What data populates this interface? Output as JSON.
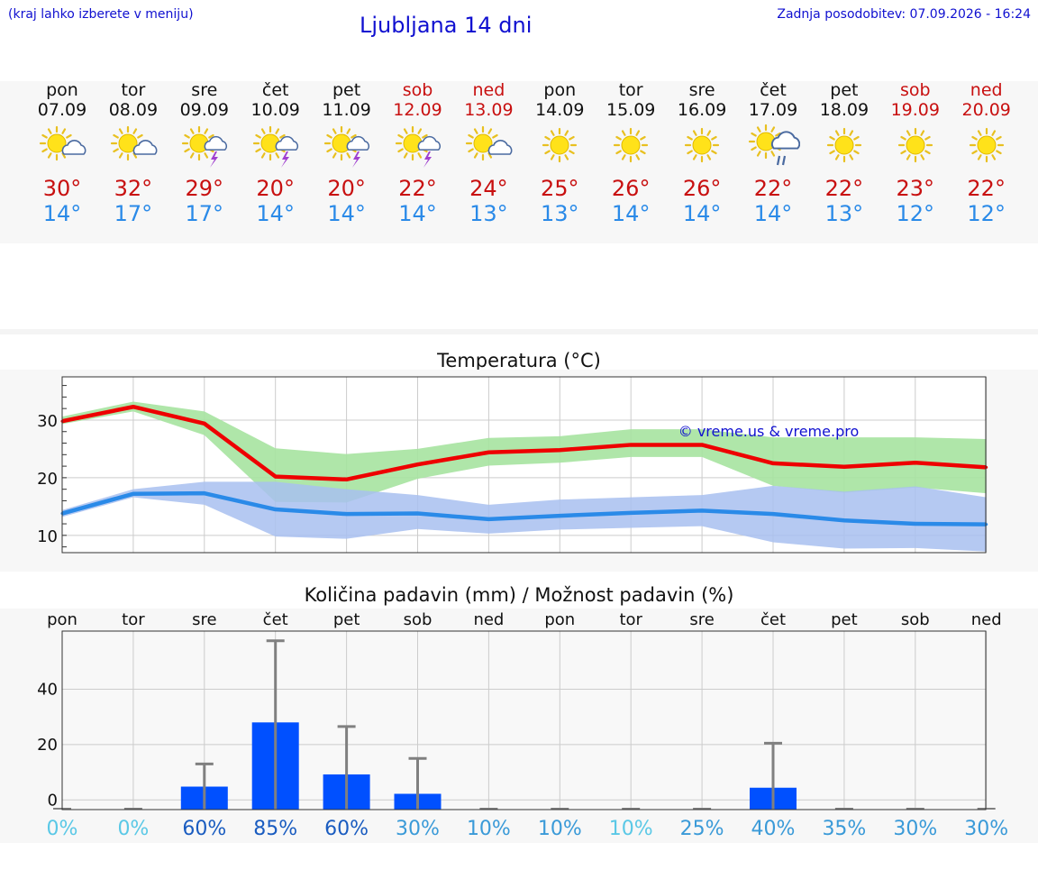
{
  "header": {
    "left_note": "(kraj lahko izberete v meniju)",
    "title": "Ljubljana 14 dni",
    "updated": "Zadnja posodobitev: 07.09.2026 - 16:24"
  },
  "days": [
    {
      "name": "pon",
      "date": "07.09",
      "hi": "30°",
      "lo": "14°",
      "weekend": false,
      "icon": "sun-cloud-icon"
    },
    {
      "name": "tor",
      "date": "08.09",
      "hi": "32°",
      "lo": "17°",
      "weekend": false,
      "icon": "sun-cloud-icon"
    },
    {
      "name": "sre",
      "date": "09.09",
      "hi": "29°",
      "lo": "17°",
      "weekend": false,
      "icon": "sun-cloud-thunder-icon"
    },
    {
      "name": "čet",
      "date": "10.09",
      "hi": "20°",
      "lo": "14°",
      "weekend": false,
      "icon": "sun-cloud-thunder-icon"
    },
    {
      "name": "pet",
      "date": "11.09",
      "hi": "20°",
      "lo": "14°",
      "weekend": false,
      "icon": "sun-cloud-thunder-icon"
    },
    {
      "name": "sob",
      "date": "12.09",
      "hi": "22°",
      "lo": "14°",
      "weekend": true,
      "icon": "sun-cloud-thunder-icon"
    },
    {
      "name": "ned",
      "date": "13.09",
      "hi": "24°",
      "lo": "13°",
      "weekend": true,
      "icon": "sun-cloud-icon"
    },
    {
      "name": "pon",
      "date": "14.09",
      "hi": "25°",
      "lo": "13°",
      "weekend": false,
      "icon": "sun-icon"
    },
    {
      "name": "tor",
      "date": "15.09",
      "hi": "26°",
      "lo": "14°",
      "weekend": false,
      "icon": "sun-icon"
    },
    {
      "name": "sre",
      "date": "16.09",
      "hi": "26°",
      "lo": "14°",
      "weekend": false,
      "icon": "sun-icon"
    },
    {
      "name": "čet",
      "date": "17.09",
      "hi": "22°",
      "lo": "14°",
      "weekend": false,
      "icon": "sun-cloud-rain-icon"
    },
    {
      "name": "pet",
      "date": "18.09",
      "hi": "22°",
      "lo": "13°",
      "weekend": false,
      "icon": "sun-icon"
    },
    {
      "name": "sob",
      "date": "19.09",
      "hi": "23°",
      "lo": "12°",
      "weekend": true,
      "icon": "sun-icon"
    },
    {
      "name": "ned",
      "date": "20.09",
      "hi": "22°",
      "lo": "12°",
      "weekend": true,
      "icon": "sun-icon"
    }
  ],
  "colors": {
    "max_line": "#ee0000",
    "max_band": "#a6e3a0",
    "min_line": "#2a8ae8",
    "min_band": "#a8c0f0",
    "bars": "#0050ff",
    "whisker": "#808080",
    "watermark": "#1010d0",
    "prob_levels": [
      "#5ac8e6",
      "#3a9ad8",
      "#1a5cc0"
    ]
  },
  "chart_data": [
    {
      "type": "line",
      "title": "Temperatura (°C)",
      "xlabel": "",
      "ylabel": "",
      "x": [
        "07.09",
        "08.09",
        "09.09",
        "10.09",
        "11.09",
        "12.09",
        "13.09",
        "14.09",
        "15.09",
        "16.09",
        "17.09",
        "18.09",
        "19.09",
        "20.09"
      ],
      "ylim": [
        7,
        37.5
      ],
      "yticks": [
        10,
        20,
        30
      ],
      "grid": true,
      "watermark": "© vreme.us & vreme.pro",
      "series": [
        {
          "values": [
            29.8,
            32.3,
            29.4,
            20.2,
            19.7,
            22.3,
            24.4,
            24.8,
            25.7,
            25.7,
            22.5,
            21.9,
            22.6,
            21.8
          ],
          "band_low": [
            29.3,
            31.5,
            27.4,
            15.8,
            15.7,
            19.8,
            22.1,
            22.6,
            23.6,
            23.6,
            18.6,
            17.4,
            18.3,
            17.3
          ],
          "band_high": [
            30.6,
            33.2,
            31.5,
            25.1,
            24.1,
            25.0,
            26.9,
            27.2,
            28.4,
            28.4,
            27.0,
            27.0,
            27.0,
            26.7
          ]
        },
        {
          "values": [
            13.8,
            17.2,
            17.3,
            14.5,
            13.7,
            13.8,
            12.8,
            13.4,
            13.9,
            14.3,
            13.7,
            12.6,
            12.0,
            11.9
          ],
          "band_low": [
            13.2,
            16.6,
            15.3,
            9.8,
            9.4,
            11.1,
            10.3,
            11.0,
            11.3,
            11.6,
            8.8,
            7.7,
            7.8,
            7.2
          ],
          "band_high": [
            14.4,
            18.0,
            19.3,
            19.3,
            18.0,
            17.0,
            15.3,
            16.2,
            16.6,
            17.0,
            18.6,
            17.6,
            18.5,
            16.6
          ]
        }
      ]
    },
    {
      "type": "bar",
      "title": "Količina padavin (mm) / Možnost padavin (%)",
      "categories": [
        "pon",
        "tor",
        "sre",
        "čet",
        "pet",
        "sob",
        "ned",
        "pon",
        "tor",
        "sre",
        "čet",
        "pet",
        "sob",
        "ned"
      ],
      "values": [
        0,
        0,
        4.8,
        28,
        9.2,
        2.2,
        0,
        0,
        0,
        0,
        4.4,
        0,
        0,
        0
      ],
      "upper": [
        0,
        0,
        13,
        57.5,
        26.5,
        15,
        0,
        0,
        0,
        0,
        20.5,
        0,
        0,
        0
      ],
      "probability": [
        "0%",
        "0%",
        "60%",
        "85%",
        "60%",
        "30%",
        "10%",
        "10%",
        "10%",
        "25%",
        "40%",
        "35%",
        "30%",
        "30%"
      ],
      "prob_level": [
        0,
        0,
        2,
        2,
        2,
        1,
        1,
        1,
        0,
        1,
        1,
        1,
        1,
        1
      ],
      "ylim": [
        -3.5,
        61
      ],
      "yticks": [
        0,
        20,
        40
      ],
      "grid": true
    }
  ]
}
